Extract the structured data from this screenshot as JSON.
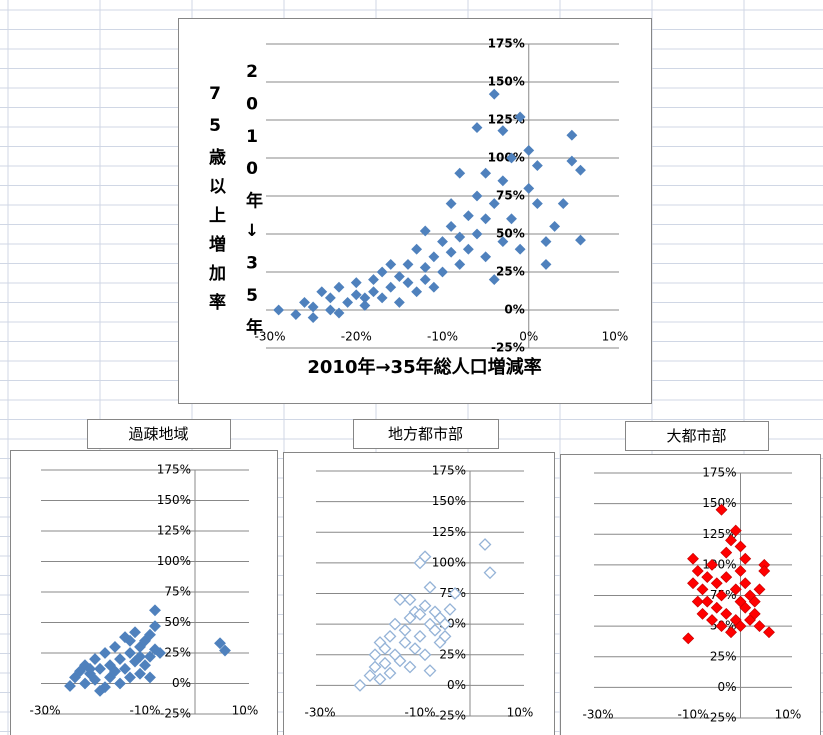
{
  "chart_data": [
    {
      "type": "scatter",
      "color": "#4f81bd",
      "marker": "filled",
      "xlabel": "2010年→35年総人口増減率",
      "ylabel": [
        "75歳以上増加率",
        "2010年↓35年"
      ],
      "xlim": [
        -30,
        10
      ],
      "ylim": [
        -25,
        175
      ],
      "xticks": [
        {
          "value": -30,
          "label": "-30%"
        },
        {
          "value": -20,
          "label": "-20%"
        },
        {
          "value": -10,
          "label": "-10%"
        },
        {
          "value": 0,
          "label": "0%"
        },
        {
          "value": 10,
          "label": "10%"
        }
      ],
      "yticks": [
        {
          "value": -25,
          "label": "-25%"
        },
        {
          "value": 0,
          "label": "0%"
        },
        {
          "value": 25,
          "label": "25%"
        },
        {
          "value": 50,
          "label": "50%"
        },
        {
          "value": 75,
          "label": "75%"
        },
        {
          "value": 100,
          "label": "100%"
        },
        {
          "value": 125,
          "label": "125%"
        },
        {
          "value": 150,
          "label": "150%"
        },
        {
          "value": 175,
          "label": "175%"
        }
      ],
      "grid": true,
      "x": [
        -29,
        -27,
        -26,
        -25,
        -24,
        -23,
        -22,
        -22,
        -21,
        -20,
        -20,
        -19,
        -18,
        -18,
        -17,
        -17,
        -16,
        -15,
        -15,
        -14,
        -14,
        -13,
        -13,
        -12,
        -12,
        -11,
        -11,
        -10,
        -10,
        -9,
        -9,
        -8,
        -8,
        -7,
        -7,
        -6,
        -6,
        -5,
        -5,
        -5,
        -4,
        -4,
        -3,
        -3,
        -3,
        -2,
        -2,
        -1,
        -1,
        0,
        0,
        1,
        1,
        2,
        2,
        3,
        4,
        5,
        5,
        6,
        6,
        -8,
        -6,
        -9,
        -16,
        -12,
        -19,
        -23,
        -25,
        -4
      ],
      "values": [
        0,
        -3,
        5,
        2,
        12,
        8,
        15,
        -2,
        5,
        18,
        10,
        3,
        20,
        12,
        8,
        25,
        15,
        22,
        5,
        30,
        18,
        12,
        40,
        28,
        20,
        35,
        15,
        45,
        25,
        38,
        55,
        30,
        48,
        62,
        40,
        50,
        75,
        35,
        60,
        90,
        142,
        70,
        45,
        118,
        85,
        100,
        60,
        127,
        40,
        80,
        105,
        95,
        70,
        45,
        30,
        55,
        70,
        115,
        98,
        92,
        46,
        90,
        120,
        70,
        30,
        52,
        8,
        0,
        -5,
        20
      ]
    },
    {
      "type": "scatter",
      "title": "過疎地域",
      "color": "#4f81bd",
      "marker": "filled",
      "xlim": [
        -30,
        10
      ],
      "ylim": [
        -25,
        175
      ],
      "xticks": [
        {
          "value": -30,
          "label": "-30%"
        },
        {
          "value": -10,
          "label": "-10%"
        },
        {
          "value": 10,
          "label": "10%"
        }
      ],
      "yticks": [
        {
          "value": -25,
          "label": "-25%"
        },
        {
          "value": 0,
          "label": "0%"
        },
        {
          "value": 25,
          "label": "25%"
        },
        {
          "value": 50,
          "label": "50%"
        },
        {
          "value": 75,
          "label": "75%"
        },
        {
          "value": 100,
          "label": "100%"
        },
        {
          "value": 125,
          "label": "125%"
        },
        {
          "value": 150,
          "label": "150%"
        },
        {
          "value": 175,
          "label": "175%"
        }
      ],
      "grid": true,
      "x": [
        -25,
        -24,
        -23,
        -22,
        -22,
        -21,
        -20,
        -20,
        -19,
        -18,
        -18,
        -17,
        -17,
        -16,
        -16,
        -15,
        -15,
        -14,
        -14,
        -13,
        -13,
        -12,
        -12,
        -11,
        -11,
        -10,
        -10,
        -9,
        -9,
        -8,
        -8,
        -8,
        -7,
        -9,
        5,
        6,
        -19,
        -21,
        -13,
        -11
      ],
      "values": [
        -2,
        5,
        10,
        0,
        15,
        8,
        3,
        20,
        12,
        -3,
        25,
        15,
        5,
        30,
        10,
        20,
        0,
        38,
        12,
        25,
        5,
        42,
        18,
        30,
        8,
        35,
        15,
        40,
        22,
        28,
        60,
        47,
        25,
        5,
        33,
        27,
        -6,
        12,
        35,
        22
      ]
    },
    {
      "type": "scatter",
      "title": "地方都市部",
      "color": "#95b3d7",
      "marker": "open",
      "xlim": [
        -30,
        10
      ],
      "ylim": [
        -25,
        175
      ],
      "xticks": [
        {
          "value": -30,
          "label": "-30%"
        },
        {
          "value": -10,
          "label": "-10%"
        },
        {
          "value": 10,
          "label": "10%"
        }
      ],
      "yticks": [
        {
          "value": -25,
          "label": "-25%"
        },
        {
          "value": 0,
          "label": "0%"
        },
        {
          "value": 25,
          "label": "25%"
        },
        {
          "value": 50,
          "label": "50%"
        },
        {
          "value": 75,
          "label": "75%"
        },
        {
          "value": 100,
          "label": "100%"
        },
        {
          "value": 125,
          "label": "125%"
        },
        {
          "value": 150,
          "label": "150%"
        },
        {
          "value": 175,
          "label": "175%"
        }
      ],
      "grid": true,
      "x": [
        -22,
        -20,
        -19,
        -19,
        -18,
        -18,
        -17,
        -17,
        -16,
        -16,
        -15,
        -15,
        -14,
        -14,
        -13,
        -13,
        -12,
        -12,
        -11,
        -11,
        -10,
        -10,
        -9,
        -9,
        -9,
        -8,
        -8,
        -7,
        -7,
        -6,
        -6,
        -5,
        -5,
        -4,
        -3,
        3,
        4,
        -8,
        -12,
        -10
      ],
      "values": [
        0,
        8,
        15,
        25,
        5,
        35,
        18,
        30,
        10,
        40,
        25,
        50,
        20,
        70,
        35,
        45,
        15,
        55,
        30,
        60,
        40,
        100,
        25,
        65,
        105,
        50,
        80,
        45,
        60,
        35,
        55,
        50,
        40,
        62,
        75,
        115,
        92,
        12,
        70,
        58
      ]
    },
    {
      "type": "scatter",
      "title": "大都市部",
      "color": "#ff0000",
      "marker": "filled",
      "xlim": [
        -30,
        10
      ],
      "ylim": [
        -25,
        175
      ],
      "xticks": [
        {
          "value": -30,
          "label": "-30%"
        },
        {
          "value": -10,
          "label": "-10%"
        },
        {
          "value": 10,
          "label": "10%"
        }
      ],
      "yticks": [
        {
          "value": -25,
          "label": "-25%"
        },
        {
          "value": 0,
          "label": "0%"
        },
        {
          "value": 25,
          "label": "25%"
        },
        {
          "value": 50,
          "label": "50%"
        },
        {
          "value": 75,
          "label": "75%"
        },
        {
          "value": 100,
          "label": "100%"
        },
        {
          "value": 125,
          "label": "125%"
        },
        {
          "value": 150,
          "label": "150%"
        },
        {
          "value": 175,
          "label": "175%"
        }
      ],
      "grid": true,
      "x": [
        -11,
        -10,
        -10,
        -9,
        -9,
        -8,
        -8,
        -7,
        -7,
        -6,
        -6,
        -5,
        -5,
        -4,
        -4,
        -4,
        -3,
        -3,
        -3,
        -2,
        -2,
        -1,
        -1,
        -1,
        0,
        0,
        0,
        0,
        1,
        1,
        1,
        2,
        2,
        3,
        3,
        4,
        4,
        5,
        5,
        6
      ],
      "values": [
        40,
        85,
        105,
        70,
        95,
        80,
        60,
        90,
        70,
        100,
        55,
        85,
        65,
        145,
        75,
        50,
        110,
        90,
        60,
        120,
        45,
        128,
        80,
        55,
        115,
        95,
        70,
        50,
        85,
        65,
        105,
        75,
        55,
        60,
        70,
        50,
        80,
        100,
        95,
        45
      ]
    }
  ]
}
